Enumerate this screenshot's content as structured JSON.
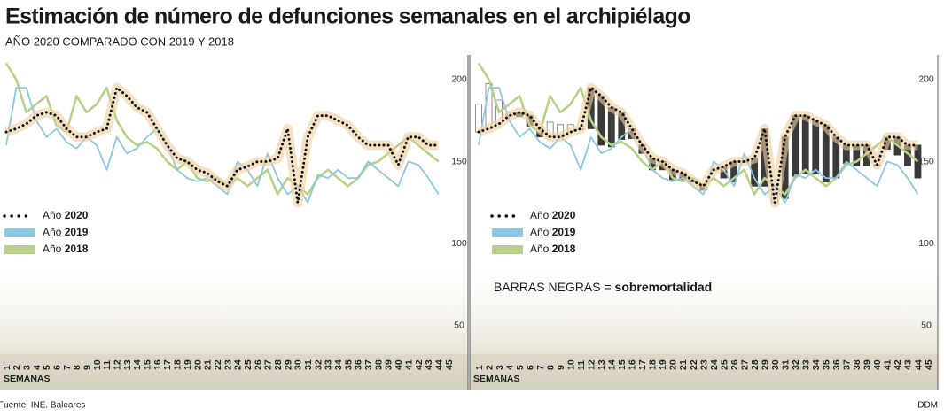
{
  "header": {
    "title": "Estimación de número de defunciones semanales en el archipiélago",
    "subtitle": "AÑO 2020 COMPARADO CON 2019 Y 2018"
  },
  "footer": {
    "source": "Fuente: INE. Baleares",
    "credit": "DDM"
  },
  "chart_data": [
    {
      "type": "line",
      "x_label": "SEMANAS",
      "categories": [
        "1",
        "2",
        "3",
        "4",
        "5",
        "6",
        "7",
        "8",
        "9",
        "10",
        "11",
        "12",
        "13",
        "14",
        "15",
        "16",
        "17",
        "18",
        "19",
        "20",
        "21",
        "22",
        "23",
        "24",
        "25",
        "26",
        "27",
        "28",
        "29",
        "30",
        "31",
        "32",
        "33",
        "34",
        "35",
        "36",
        "37",
        "38",
        "39",
        "40",
        "41",
        "42",
        "43",
        "44",
        "45"
      ],
      "ylim": [
        30,
        215
      ],
      "yticks": [
        50,
        100,
        150,
        200
      ],
      "grid": false,
      "series": [
        {
          "name": "Año 2020",
          "color": "#111111",
          "values": [
            168,
            170,
            173,
            178,
            180,
            178,
            170,
            165,
            165,
            168,
            170,
            195,
            190,
            183,
            180,
            170,
            160,
            152,
            150,
            145,
            143,
            138,
            135,
            145,
            147,
            150,
            150,
            152,
            170,
            125,
            165,
            178,
            178,
            175,
            172,
            165,
            160,
            160,
            160,
            148,
            165,
            165,
            160,
            160,
            null
          ]
        },
        {
          "name": "Año 2019",
          "color": "#8ec7e0",
          "values": [
            160,
            195,
            195,
            175,
            165,
            170,
            162,
            158,
            165,
            160,
            145,
            165,
            155,
            158,
            165,
            170,
            160,
            145,
            140,
            138,
            140,
            135,
            130,
            150,
            145,
            135,
            155,
            140,
            130,
            135,
            125,
            142,
            140,
            145,
            140,
            140,
            150,
            145,
            140,
            135,
            150,
            148,
            140,
            130,
            null
          ]
        },
        {
          "name": "Año 2018",
          "color": "#b9d08a",
          "values": [
            210,
            200,
            180,
            185,
            190,
            172,
            168,
            190,
            180,
            185,
            195,
            175,
            165,
            160,
            162,
            158,
            150,
            145,
            150,
            140,
            138,
            140,
            135,
            140,
            135,
            140,
            145,
            130,
            140,
            135,
            130,
            140,
            145,
            140,
            135,
            140,
            148,
            150,
            155,
            160,
            165,
            160,
            155,
            150,
            null
          ]
        }
      ]
    },
    {
      "type": "combo",
      "x_label": "SEMANAS",
      "annotation": "BARRAS NEGRAS = sobremortalidad",
      "categories": [
        "1",
        "2",
        "3",
        "4",
        "5",
        "6",
        "7",
        "8",
        "9",
        "10",
        "11",
        "12",
        "13",
        "14",
        "15",
        "16",
        "17",
        "18",
        "19",
        "20",
        "21",
        "22",
        "23",
        "24",
        "25",
        "26",
        "27",
        "28",
        "29",
        "30",
        "31",
        "32",
        "33",
        "34",
        "35",
        "36",
        "37",
        "38",
        "39",
        "40",
        "41",
        "42",
        "43",
        "44",
        "45"
      ],
      "ylim": [
        30,
        215
      ],
      "yticks": [
        50,
        100,
        150,
        200
      ],
      "grid": false,
      "bar_color": "#3a3a3a",
      "series": [
        {
          "name": "Año 2020",
          "color": "#111111",
          "values": [
            168,
            170,
            173,
            178,
            180,
            178,
            170,
            165,
            165,
            168,
            170,
            195,
            190,
            183,
            180,
            170,
            160,
            152,
            150,
            145,
            143,
            138,
            135,
            145,
            147,
            150,
            150,
            152,
            170,
            125,
            165,
            178,
            178,
            175,
            172,
            165,
            160,
            160,
            160,
            148,
            165,
            165,
            160,
            160,
            null
          ]
        },
        {
          "name": "Año 2019",
          "color": "#8ec7e0",
          "values": [
            160,
            195,
            195,
            175,
            165,
            170,
            162,
            158,
            165,
            160,
            145,
            165,
            155,
            158,
            165,
            170,
            160,
            145,
            140,
            138,
            140,
            135,
            130,
            150,
            145,
            135,
            155,
            140,
            130,
            135,
            125,
            142,
            140,
            145,
            140,
            140,
            150,
            145,
            140,
            135,
            150,
            148,
            140,
            130,
            null
          ]
        },
        {
          "name": "Año 2018",
          "color": "#b9d08a",
          "values": [
            210,
            200,
            180,
            185,
            190,
            172,
            168,
            190,
            180,
            185,
            195,
            175,
            165,
            160,
            162,
            158,
            150,
            145,
            150,
            140,
            138,
            140,
            135,
            140,
            135,
            140,
            145,
            130,
            140,
            135,
            130,
            140,
            145,
            140,
            135,
            140,
            148,
            150,
            155,
            160,
            165,
            160,
            155,
            150,
            null
          ]
        }
      ]
    }
  ]
}
